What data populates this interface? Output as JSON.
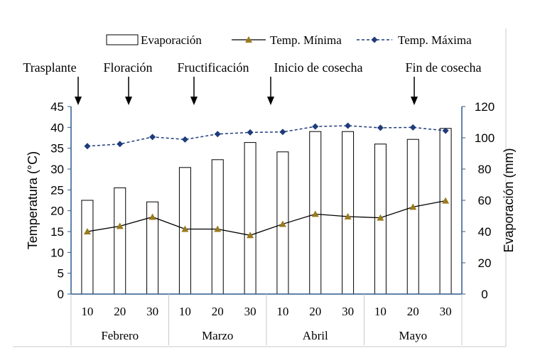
{
  "chart_data": {
    "type": "bar+line",
    "title": "",
    "legend": {
      "placement": "top-right",
      "entries": [
        "Evaporación",
        "Temp. Mínima",
        "Temp. Máxima"
      ]
    },
    "y_left": {
      "label": "Temperatura (°C)",
      "range": [
        0,
        45
      ],
      "ticks": [
        "0",
        "5",
        "10",
        "15",
        "20",
        "25",
        "30",
        "35",
        "40",
        "45"
      ]
    },
    "y_right": {
      "label": "Evaporación (mm)",
      "range": [
        0,
        120
      ],
      "ticks": [
        "0",
        "20",
        "40",
        "60",
        "80",
        "100",
        "120"
      ]
    },
    "categories": [
      "10",
      "20",
      "30",
      "10",
      "20",
      "30",
      "10",
      "20",
      "30",
      "10",
      "20",
      "30"
    ],
    "months": [
      "Febrero",
      "Marzo",
      "Abril",
      "Mayo"
    ],
    "series": [
      {
        "name": "Evaporación",
        "kind": "bar",
        "axis": "right",
        "values": [
          60,
          68,
          59,
          81,
          86,
          97,
          91,
          104,
          104,
          96,
          99,
          106
        ]
      },
      {
        "name": "Temp. Mínima",
        "kind": "line",
        "axis": "left",
        "marker": "triangle",
        "values": [
          15.0,
          16.3,
          18.5,
          15.6,
          15.6,
          14.1,
          16.8,
          19.2,
          18.6,
          18.3,
          20.9,
          22.4
        ]
      },
      {
        "name": "Temp. Máxima",
        "kind": "line-dashed",
        "axis": "left",
        "marker": "diamond",
        "values": [
          35.5,
          36.0,
          37.7,
          37.1,
          38.4,
          38.8,
          38.9,
          40.2,
          40.4,
          39.9,
          40.0,
          39.2
        ]
      }
    ],
    "annotations": [
      {
        "label": "Trasplante",
        "position": "before-feb-10"
      },
      {
        "label": "Floración",
        "position": "between-feb-20-and-feb-30"
      },
      {
        "label": "Fructificación",
        "position": "between-feb-30-and-mar-10"
      },
      {
        "label": "Inicio de cosecha",
        "position": "between-mar-30-and-apr-10"
      },
      {
        "label": "Fin de cosecha",
        "position": "at-may-20"
      }
    ]
  },
  "colors": {
    "axis": "#2e5a8a",
    "bar_fill": "#ffffff",
    "bar_stroke": "#000000",
    "min_line": "#000000",
    "min_marker": "#9a7a1c",
    "max_line": "#1f3b7a",
    "max_marker": "#1f3b7a",
    "text": "#000000",
    "frame": "#c8c8c8"
  }
}
